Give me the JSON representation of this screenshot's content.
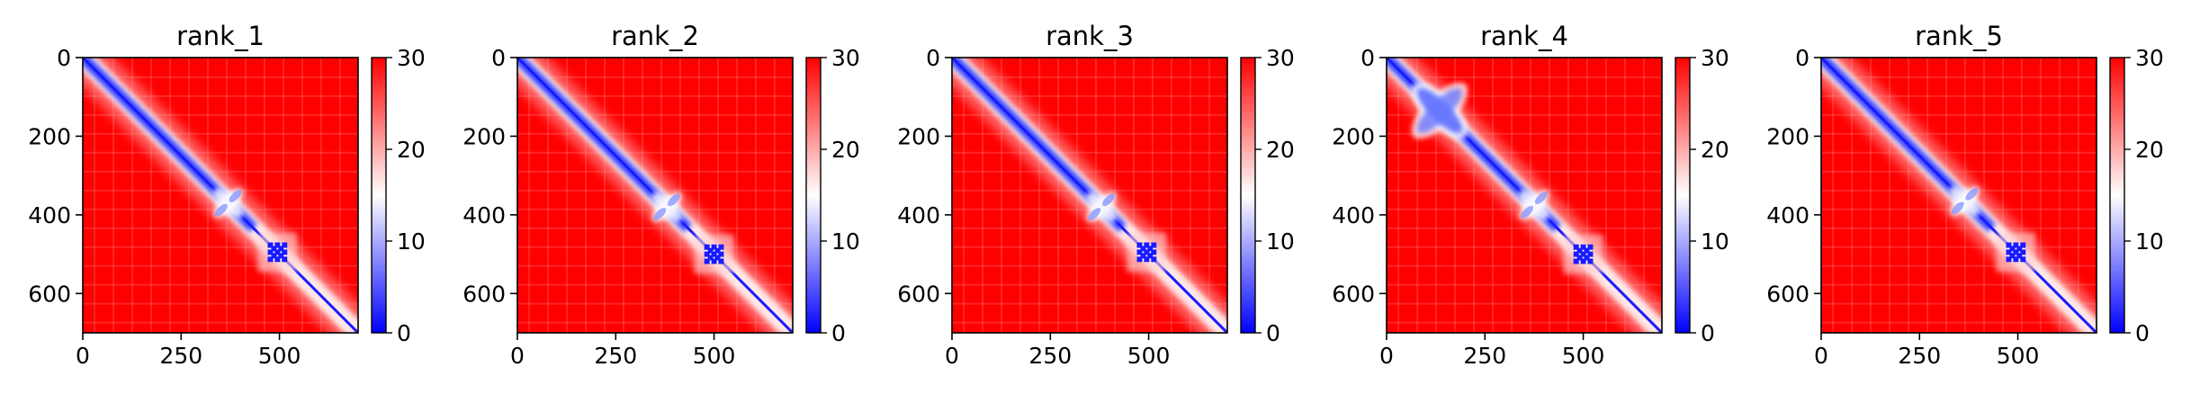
{
  "chart_data": [
    {
      "type": "heatmap",
      "title": "rank_1",
      "x_ticks": [
        0,
        250,
        500
      ],
      "y_ticks": [
        0,
        200,
        400,
        600
      ],
      "xlim": [
        0,
        700
      ],
      "ylim": [
        700,
        0
      ],
      "colorbar": {
        "ticks": [
          0,
          10,
          20,
          30
        ],
        "range": [
          0,
          30
        ],
        "colors": [
          "#0000ff",
          "#ffffff",
          "#ff0000"
        ]
      },
      "features": [
        {
          "from": 0,
          "to": 700,
          "kind": "diagonal"
        },
        {
          "center": [
            370,
            370
          ],
          "kind": "cross"
        },
        {
          "center": [
            495,
            495
          ],
          "kind": "block"
        }
      ]
    },
    {
      "type": "heatmap",
      "title": "rank_2",
      "x_ticks": [
        0,
        250,
        500
      ],
      "y_ticks": [
        0,
        200,
        400,
        600
      ],
      "xlim": [
        0,
        700
      ],
      "ylim": [
        700,
        0
      ],
      "colorbar": {
        "ticks": [
          0,
          10,
          20,
          30
        ],
        "range": [
          0,
          30
        ],
        "colors": [
          "#0000ff",
          "#ffffff",
          "#ff0000"
        ]
      },
      "features": [
        {
          "from": 0,
          "to": 700,
          "kind": "diagonal"
        },
        {
          "center": [
            380,
            380
          ],
          "kind": "cross"
        },
        {
          "center": [
            500,
            500
          ],
          "kind": "block"
        }
      ]
    },
    {
      "type": "heatmap",
      "title": "rank_3",
      "x_ticks": [
        0,
        250,
        500
      ],
      "y_ticks": [
        0,
        200,
        400,
        600
      ],
      "xlim": [
        0,
        700
      ],
      "ylim": [
        700,
        0
      ],
      "colorbar": {
        "ticks": [
          0,
          10,
          20,
          30
        ],
        "range": [
          0,
          30
        ],
        "colors": [
          "#0000ff",
          "#ffffff",
          "#ff0000"
        ]
      },
      "features": [
        {
          "from": 0,
          "to": 700,
          "kind": "diagonal"
        },
        {
          "center": [
            380,
            380
          ],
          "kind": "cross"
        },
        {
          "center": [
            495,
            495
          ],
          "kind": "block"
        }
      ]
    },
    {
      "type": "heatmap",
      "title": "rank_4",
      "x_ticks": [
        0,
        250,
        500
      ],
      "y_ticks": [
        0,
        200,
        400,
        600
      ],
      "xlim": [
        0,
        700
      ],
      "ylim": [
        700,
        0
      ],
      "colorbar": {
        "ticks": [
          0,
          10,
          20,
          30
        ],
        "range": [
          0,
          30
        ],
        "colors": [
          "#0000ff",
          "#ffffff",
          "#ff0000"
        ]
      },
      "features": [
        {
          "from": 0,
          "to": 700,
          "kind": "diagonal"
        },
        {
          "center": [
            135,
            135
          ],
          "kind": "cross"
        },
        {
          "center": [
            375,
            375
          ],
          "kind": "cross"
        },
        {
          "center": [
            500,
            500
          ],
          "kind": "block"
        }
      ]
    },
    {
      "type": "heatmap",
      "title": "rank_5",
      "x_ticks": [
        0,
        250,
        500
      ],
      "y_ticks": [
        0,
        200,
        400,
        600
      ],
      "xlim": [
        0,
        700
      ],
      "ylim": [
        700,
        0
      ],
      "colorbar": {
        "ticks": [
          0,
          10,
          20,
          30
        ],
        "range": [
          0,
          30
        ],
        "colors": [
          "#0000ff",
          "#ffffff",
          "#ff0000"
        ]
      },
      "features": [
        {
          "from": 0,
          "to": 700,
          "kind": "diagonal"
        },
        {
          "center": [
            365,
            365
          ],
          "kind": "cross"
        },
        {
          "center": [
            495,
            495
          ],
          "kind": "block"
        }
      ]
    }
  ]
}
